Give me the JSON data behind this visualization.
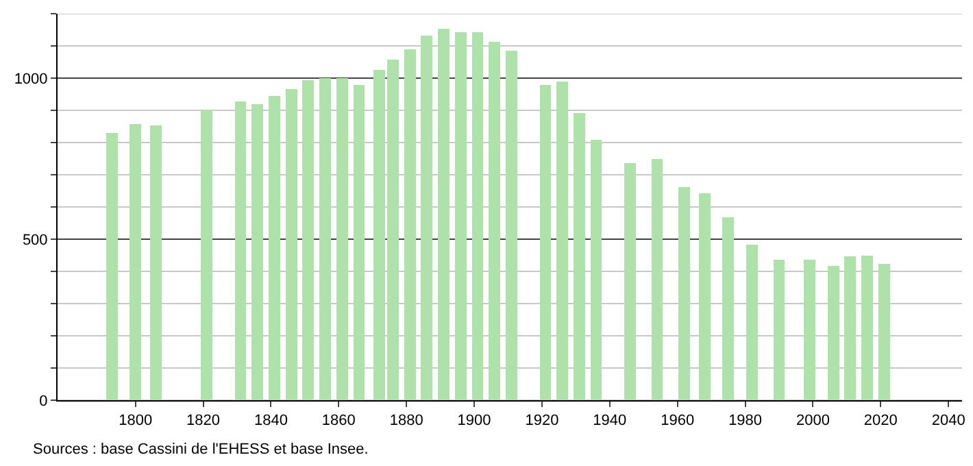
{
  "chart_data": {
    "type": "bar",
    "x": [
      1793,
      1800,
      1806,
      1821,
      1831,
      1836,
      1841,
      1846,
      1851,
      1856,
      1861,
      1866,
      1872,
      1876,
      1881,
      1886,
      1891,
      1896,
      1901,
      1906,
      1911,
      1921,
      1926,
      1931,
      1936,
      1946,
      1954,
      1962,
      1968,
      1975,
      1982,
      1990,
      1999,
      2006,
      2011,
      2016,
      2021
    ],
    "values": [
      830,
      857,
      854,
      900,
      928,
      919,
      944,
      965,
      994,
      1000,
      1000,
      978,
      1025,
      1058,
      1090,
      1133,
      1153,
      1142,
      1142,
      1112,
      1086,
      978,
      990,
      892,
      808,
      736,
      750,
      662,
      642,
      569,
      483,
      437,
      437,
      417,
      446,
      450,
      424
    ],
    "color": "#aee2aa",
    "xlim": [
      1777,
      2044
    ],
    "xticks": [
      1800,
      1820,
      1840,
      1860,
      1880,
      1900,
      1920,
      1940,
      1960,
      1980,
      2000,
      2020,
      2040
    ],
    "ylim": [
      0,
      1200
    ],
    "yticks": [
      0,
      {
        "value": 100,
        "label": null
      },
      {
        "value": 200,
        "label": null
      },
      {
        "value": 300,
        "label": null
      },
      {
        "value": 400,
        "label": null
      },
      500,
      {
        "value": 600,
        "label": null
      },
      {
        "value": 700,
        "label": null
      },
      {
        "value": 800,
        "label": null
      },
      {
        "value": 900,
        "label": null
      },
      1000,
      {
        "value": 1100,
        "label": null
      },
      {
        "value": 1200,
        "label": null
      }
    ],
    "grid": "y",
    "annotations": [
      "Sources : base Cassini de l'EHESS et base Insee."
    ]
  }
}
